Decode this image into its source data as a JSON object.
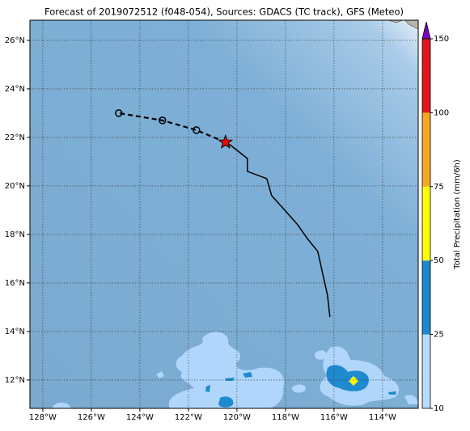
{
  "chart_data": {
    "type": "map",
    "title": "Forecast of 2019072512 (f048-054), Sources: GDACS (TC track), GFS (Meteo)",
    "xlim": [
      -128.53,
      -112.53
    ],
    "ylim": [
      10.83,
      26.83
    ],
    "xticks": [
      {
        "value": -128,
        "label": "128°W"
      },
      {
        "value": -126,
        "label": "126°W"
      },
      {
        "value": -124,
        "label": "124°W"
      },
      {
        "value": -122,
        "label": "122°W"
      },
      {
        "value": -120,
        "label": "120°W"
      },
      {
        "value": -118,
        "label": "118°W"
      },
      {
        "value": -116,
        "label": "116°W"
      },
      {
        "value": -114,
        "label": "114°W"
      }
    ],
    "yticks": [
      {
        "value": 12,
        "label": "12°N"
      },
      {
        "value": 14,
        "label": "14°N"
      },
      {
        "value": 16,
        "label": "16°N"
      },
      {
        "value": 18,
        "label": "18°N"
      },
      {
        "value": 20,
        "label": "20°N"
      },
      {
        "value": 22,
        "label": "22°N"
      },
      {
        "value": 24,
        "label": "24°N"
      },
      {
        "value": 26,
        "label": "26°N"
      }
    ],
    "grid": true,
    "track": {
      "x": [
        -116.17,
        -116.27,
        -116.67,
        -117.1,
        -117.5,
        -118.03,
        -118.57,
        -118.77,
        -119.57,
        -119.57,
        -120.33
      ],
      "y": [
        14.6,
        15.5,
        17.3,
        17.83,
        18.4,
        19.0,
        19.6,
        20.3,
        20.6,
        21.13,
        21.73
      ]
    },
    "current": {
      "x": -120.47,
      "y": 21.8
    },
    "forecast": {
      "x": [
        -121.67,
        -123.07,
        -124.87
      ],
      "y": [
        22.3,
        22.7,
        23.0
      ]
    },
    "colorbar": {
      "label": "Total Precipitation (mm/6h)",
      "ticks": [
        10,
        25,
        50,
        75,
        100,
        150
      ],
      "colors": [
        "#b8dcff",
        "#1a88d2",
        "#ffff00",
        "#f7a823",
        "#e3141c"
      ],
      "over_color": "#7a00c0"
    }
  }
}
